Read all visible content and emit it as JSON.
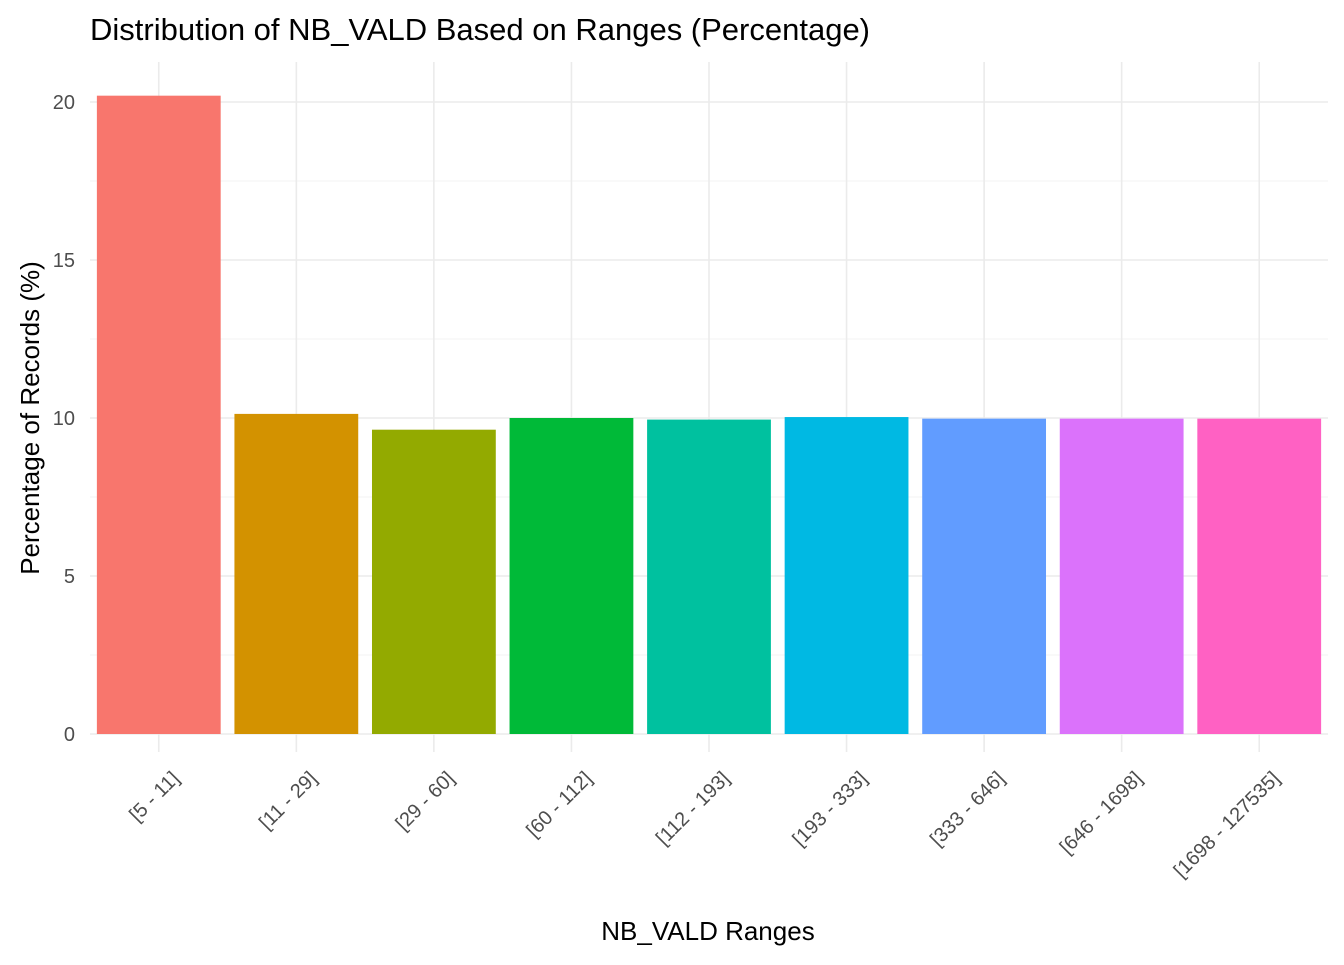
{
  "chart_data": {
    "type": "bar",
    "title": "Distribution of NB_VALD Based on Ranges (Percentage)",
    "xlabel": "NB_VALD Ranges",
    "ylabel": "Percentage of Records (%)",
    "categories": [
      "[5 - 11]",
      "[11 - 29]",
      "[29 - 60]",
      "[60 - 112]",
      "[112 - 193]",
      "[193 - 333]",
      "[333 - 646]",
      "[646 - 1698]",
      "[1698 - 127535]"
    ],
    "values": [
      20.2,
      10.13,
      9.63,
      10.0,
      9.95,
      10.03,
      9.98,
      9.98,
      9.98
    ],
    "colors": [
      "#F8766D",
      "#D39200",
      "#93AA00",
      "#00BA38",
      "#00C19F",
      "#00B9E3",
      "#619CFF",
      "#DB72FB",
      "#FF61C3"
    ],
    "ylim": [
      0,
      21.2
    ],
    "yticks": [
      0,
      5,
      10,
      15,
      20
    ],
    "grid": true,
    "legend": "none"
  }
}
